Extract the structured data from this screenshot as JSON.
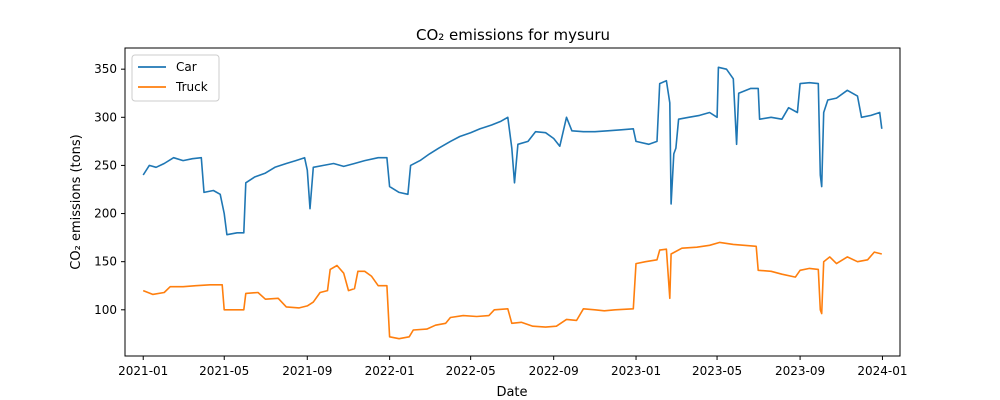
{
  "chart_data": {
    "type": "line",
    "title": "CO₂ emissions for mysuru",
    "xlabel": "Date",
    "ylabel": "CO₂ emissions (tons)",
    "x_ticks": [
      "2021-01",
      "2021-05",
      "2021-09",
      "2022-01",
      "2022-05",
      "2022-09",
      "2023-01",
      "2023-05",
      "2023-09",
      "2024-01"
    ],
    "y_ticks": [
      100,
      150,
      200,
      250,
      300,
      350
    ],
    "xlim": [
      "2020-12-05",
      "2024-01-27"
    ],
    "ylim": [
      52,
      372
    ],
    "legend": "top-left",
    "grid": false,
    "series": [
      {
        "name": "Car",
        "color": "#1f77b4",
        "points": [
          [
            "2021-01-01",
            240
          ],
          [
            "2021-01-10",
            250
          ],
          [
            "2021-01-20",
            248
          ],
          [
            "2021-02-01",
            252
          ],
          [
            "2021-02-15",
            258
          ],
          [
            "2021-03-01",
            255
          ],
          [
            "2021-03-15",
            257
          ],
          [
            "2021-03-28",
            258
          ],
          [
            "2021-04-01",
            222
          ],
          [
            "2021-04-15",
            224
          ],
          [
            "2021-04-25",
            220
          ],
          [
            "2021-05-01",
            200
          ],
          [
            "2021-05-05",
            178
          ],
          [
            "2021-05-20",
            180
          ],
          [
            "2021-05-30",
            180
          ],
          [
            "2021-06-02",
            232
          ],
          [
            "2021-06-15",
            238
          ],
          [
            "2021-07-01",
            242
          ],
          [
            "2021-07-15",
            248
          ],
          [
            "2021-08-01",
            252
          ],
          [
            "2021-08-15",
            255
          ],
          [
            "2021-08-28",
            258
          ],
          [
            "2021-09-01",
            245
          ],
          [
            "2021-09-05",
            205
          ],
          [
            "2021-09-10",
            248
          ],
          [
            "2021-09-25",
            250
          ],
          [
            "2021-10-10",
            252
          ],
          [
            "2021-10-25",
            249
          ],
          [
            "2021-11-10",
            252
          ],
          [
            "2021-11-25",
            255
          ],
          [
            "2021-12-15",
            258
          ],
          [
            "2021-12-28",
            258
          ],
          [
            "2022-01-01",
            228
          ],
          [
            "2022-01-15",
            222
          ],
          [
            "2022-01-28",
            220
          ],
          [
            "2022-02-01",
            250
          ],
          [
            "2022-02-15",
            255
          ],
          [
            "2022-03-01",
            262
          ],
          [
            "2022-03-15",
            268
          ],
          [
            "2022-04-01",
            275
          ],
          [
            "2022-04-15",
            280
          ],
          [
            "2022-05-01",
            284
          ],
          [
            "2022-05-15",
            288
          ],
          [
            "2022-06-01",
            292
          ],
          [
            "2022-06-15",
            296
          ],
          [
            "2022-06-25",
            300
          ],
          [
            "2022-07-01",
            268
          ],
          [
            "2022-07-05",
            232
          ],
          [
            "2022-07-10",
            272
          ],
          [
            "2022-07-25",
            275
          ],
          [
            "2022-08-05",
            285
          ],
          [
            "2022-08-20",
            284
          ],
          [
            "2022-09-01",
            278
          ],
          [
            "2022-09-10",
            270
          ],
          [
            "2022-09-20",
            300
          ],
          [
            "2022-09-28",
            286
          ],
          [
            "2022-10-15",
            285
          ],
          [
            "2022-11-01",
            285
          ],
          [
            "2022-11-20",
            286
          ],
          [
            "2022-12-10",
            287
          ],
          [
            "2022-12-28",
            288
          ],
          [
            "2023-01-01",
            275
          ],
          [
            "2023-01-20",
            272
          ],
          [
            "2023-02-01",
            275
          ],
          [
            "2023-02-05",
            335
          ],
          [
            "2023-02-15",
            338
          ],
          [
            "2023-02-20",
            315
          ],
          [
            "2023-02-22",
            210
          ],
          [
            "2023-02-26",
            262
          ],
          [
            "2023-03-01",
            268
          ],
          [
            "2023-03-05",
            298
          ],
          [
            "2023-03-20",
            300
          ],
          [
            "2023-04-05",
            302
          ],
          [
            "2023-04-20",
            305
          ],
          [
            "2023-05-01",
            300
          ],
          [
            "2023-05-03",
            352
          ],
          [
            "2023-05-15",
            350
          ],
          [
            "2023-05-25",
            340
          ],
          [
            "2023-05-30",
            272
          ],
          [
            "2023-06-02",
            325
          ],
          [
            "2023-06-20",
            330
          ],
          [
            "2023-07-01",
            330
          ],
          [
            "2023-07-03",
            298
          ],
          [
            "2023-07-20",
            300
          ],
          [
            "2023-08-05",
            298
          ],
          [
            "2023-08-15",
            310
          ],
          [
            "2023-08-28",
            305
          ],
          [
            "2023-09-01",
            335
          ],
          [
            "2023-09-15",
            336
          ],
          [
            "2023-09-28",
            335
          ],
          [
            "2023-10-01",
            240
          ],
          [
            "2023-10-03",
            228
          ],
          [
            "2023-10-06",
            305
          ],
          [
            "2023-10-12",
            318
          ],
          [
            "2023-10-25",
            320
          ],
          [
            "2023-11-10",
            328
          ],
          [
            "2023-11-25",
            322
          ],
          [
            "2023-12-01",
            300
          ],
          [
            "2023-12-15",
            302
          ],
          [
            "2023-12-28",
            305
          ],
          [
            "2023-12-31",
            288
          ]
        ]
      },
      {
        "name": "Truck",
        "color": "#ff7f0e",
        "points": [
          [
            "2021-01-01",
            120
          ],
          [
            "2021-01-15",
            116
          ],
          [
            "2021-02-01",
            118
          ],
          [
            "2021-02-10",
            124
          ],
          [
            "2021-03-01",
            124
          ],
          [
            "2021-03-20",
            125
          ],
          [
            "2021-04-10",
            126
          ],
          [
            "2021-04-28",
            126
          ],
          [
            "2021-05-01",
            100
          ],
          [
            "2021-05-15",
            100
          ],
          [
            "2021-05-30",
            100
          ],
          [
            "2021-06-02",
            117
          ],
          [
            "2021-06-20",
            118
          ],
          [
            "2021-07-01",
            111
          ],
          [
            "2021-07-20",
            112
          ],
          [
            "2021-08-01",
            103
          ],
          [
            "2021-08-20",
            102
          ],
          [
            "2021-09-01",
            104
          ],
          [
            "2021-09-10",
            108
          ],
          [
            "2021-09-20",
            118
          ],
          [
            "2021-10-01",
            120
          ],
          [
            "2021-10-05",
            142
          ],
          [
            "2021-10-15",
            146
          ],
          [
            "2021-10-25",
            138
          ],
          [
            "2021-11-01",
            120
          ],
          [
            "2021-11-10",
            122
          ],
          [
            "2021-11-15",
            140
          ],
          [
            "2021-11-25",
            140
          ],
          [
            "2021-12-05",
            135
          ],
          [
            "2021-12-15",
            125
          ],
          [
            "2021-12-28",
            125
          ],
          [
            "2022-01-01",
            72
          ],
          [
            "2022-01-15",
            70
          ],
          [
            "2022-01-30",
            72
          ],
          [
            "2022-02-05",
            79
          ],
          [
            "2022-02-25",
            80
          ],
          [
            "2022-03-10",
            84
          ],
          [
            "2022-03-25",
            86
          ],
          [
            "2022-04-01",
            92
          ],
          [
            "2022-04-20",
            94
          ],
          [
            "2022-05-10",
            93
          ],
          [
            "2022-05-28",
            94
          ],
          [
            "2022-06-05",
            100
          ],
          [
            "2022-06-25",
            101
          ],
          [
            "2022-07-01",
            86
          ],
          [
            "2022-07-15",
            87
          ],
          [
            "2022-08-01",
            83
          ],
          [
            "2022-08-20",
            82
          ],
          [
            "2022-09-05",
            83
          ],
          [
            "2022-09-20",
            90
          ],
          [
            "2022-10-05",
            89
          ],
          [
            "2022-10-15",
            101
          ],
          [
            "2022-11-01",
            100
          ],
          [
            "2022-11-15",
            99
          ],
          [
            "2022-12-01",
            100
          ],
          [
            "2022-12-28",
            101
          ],
          [
            "2023-01-01",
            148
          ],
          [
            "2023-01-15",
            150
          ],
          [
            "2023-02-01",
            152
          ],
          [
            "2023-02-05",
            162
          ],
          [
            "2023-02-15",
            163
          ],
          [
            "2023-02-20",
            112
          ],
          [
            "2023-02-22",
            158
          ],
          [
            "2023-03-10",
            164
          ],
          [
            "2023-04-01",
            165
          ],
          [
            "2023-04-20",
            167
          ],
          [
            "2023-05-05",
            170
          ],
          [
            "2023-05-25",
            168
          ],
          [
            "2023-06-10",
            167
          ],
          [
            "2023-06-28",
            166
          ],
          [
            "2023-07-01",
            141
          ],
          [
            "2023-07-20",
            140
          ],
          [
            "2023-08-05",
            137
          ],
          [
            "2023-08-25",
            134
          ],
          [
            "2023-09-01",
            141
          ],
          [
            "2023-09-15",
            143
          ],
          [
            "2023-09-28",
            142
          ],
          [
            "2023-10-01",
            100
          ],
          [
            "2023-10-03",
            96
          ],
          [
            "2023-10-06",
            150
          ],
          [
            "2023-10-15",
            155
          ],
          [
            "2023-10-25",
            148
          ],
          [
            "2023-11-10",
            155
          ],
          [
            "2023-11-25",
            150
          ],
          [
            "2023-12-10",
            152
          ],
          [
            "2023-12-20",
            160
          ],
          [
            "2023-12-31",
            158
          ]
        ]
      }
    ]
  }
}
